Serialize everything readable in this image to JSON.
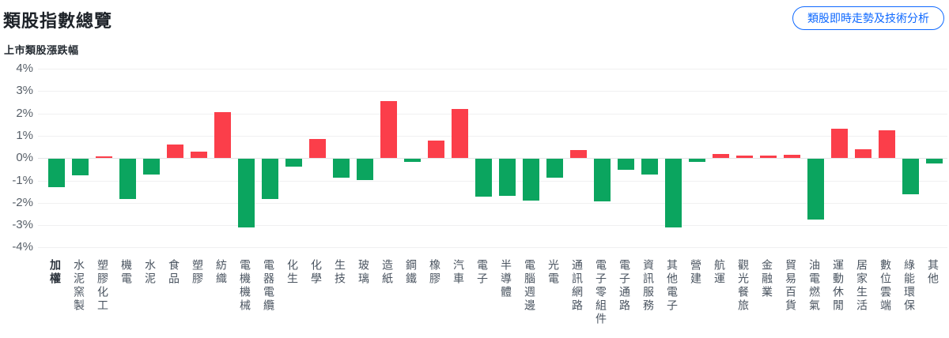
{
  "header": {
    "title": "類股指數總覽",
    "action_button": "類股即時走勢及技術分析"
  },
  "chart_data": {
    "type": "bar",
    "title": "上市類股漲跌幅",
    "xlabel": "",
    "ylabel": "",
    "ylim": [
      -4,
      4
    ],
    "grid": true,
    "legend": "none",
    "y_ticks": [
      "4%",
      "3%",
      "2%",
      "1%",
      "0%",
      "-1%",
      "-2%",
      "-3%",
      "-4%"
    ],
    "colors": {
      "positive": "#fb3e4a",
      "negative": "#0ba55f"
    },
    "unit": "%",
    "categories": [
      "加權",
      "水泥窯製",
      "塑膠化工",
      "機電",
      "水泥",
      "食品",
      "塑膠",
      "紡織",
      "電機機械",
      "電器電纜",
      "化生",
      "化學",
      "生技",
      "玻璃",
      "造紙",
      "鋼鐵",
      "橡膠",
      "汽車",
      "電子",
      "半導體",
      "電腦週邊",
      "光電",
      "通訊網路",
      "電子零組件",
      "電子通路",
      "資訊服務",
      "其他電子",
      "營建",
      "航運",
      "觀光餐旅",
      "金融業",
      "貿易百貨",
      "油電燃氣",
      "運動休閒",
      "居家生活",
      "數位雲端",
      "綠能環保",
      "其他"
    ],
    "values": [
      -1.25,
      -0.75,
      0.05,
      -1.8,
      -0.7,
      0.6,
      0.3,
      2.05,
      -3.05,
      -1.8,
      -0.35,
      0.85,
      -0.85,
      -0.95,
      2.55,
      -0.15,
      0.8,
      2.2,
      -1.7,
      -1.65,
      -1.85,
      -0.85,
      0.35,
      -1.9,
      -0.5,
      -0.7,
      -3.05,
      -0.15,
      0.2,
      0.1,
      0.1,
      0.15,
      -2.7,
      1.3,
      0.4,
      1.25,
      -1.6,
      -0.2
    ]
  }
}
